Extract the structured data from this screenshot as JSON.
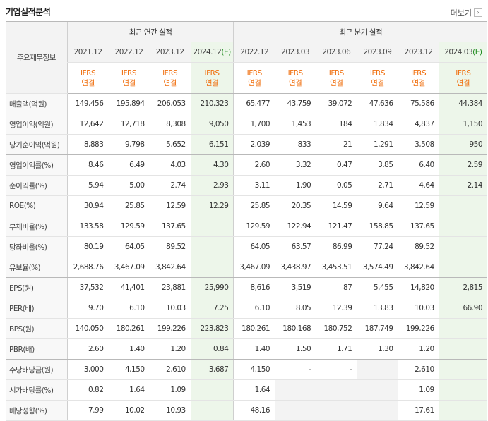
{
  "section_title": "기업실적분석",
  "more_label": "더보기",
  "more_icon": "chevron-right-icon",
  "header": {
    "row_label": "주요재무정보",
    "annual_group": "최근 연간 실적",
    "quarter_group": "최근 분기 실적",
    "annual_years": [
      "2021.12",
      "2022.12",
      "2023.12",
      "2024.12"
    ],
    "annual_estimate_mark": "(E)",
    "quarter_periods": [
      "2022.12",
      "2023.03",
      "2023.06",
      "2023.09",
      "2023.12",
      "2024.03"
    ],
    "quarter_estimate_mark": "(E)",
    "ifrs_top": "IFRS",
    "ifrs_bottom": "연결"
  },
  "rows": [
    {
      "label": "매출액(억원)",
      "annual": [
        "149,456",
        "195,894",
        "206,053",
        "210,323"
      ],
      "quarter": [
        "65,477",
        "43,759",
        "39,072",
        "47,636",
        "75,586",
        "44,384"
      ]
    },
    {
      "label": "영업이익(억원)",
      "annual": [
        "12,642",
        "12,718",
        "8,308",
        "9,050"
      ],
      "quarter": [
        "1,700",
        "1,453",
        "184",
        "1,834",
        "4,837",
        "1,150"
      ]
    },
    {
      "label": "당기순이익(억원)",
      "annual": [
        "8,883",
        "9,798",
        "5,652",
        "6,151"
      ],
      "quarter": [
        "2,039",
        "833",
        "21",
        "1,291",
        "3,508",
        "950"
      ]
    },
    {
      "label": "영업이익률(%)",
      "annual": [
        "8.46",
        "6.49",
        "4.03",
        "4.30"
      ],
      "quarter": [
        "2.60",
        "3.32",
        "0.47",
        "3.85",
        "6.40",
        "2.59"
      ]
    },
    {
      "label": "순이익률(%)",
      "annual": [
        "5.94",
        "5.00",
        "2.74",
        "2.93"
      ],
      "quarter": [
        "3.11",
        "1.90",
        "0.05",
        "2.71",
        "4.64",
        "2.14"
      ]
    },
    {
      "label": "ROE(%)",
      "annual": [
        "30.94",
        "25.85",
        "12.59",
        "12.29"
      ],
      "quarter": [
        "25.85",
        "20.35",
        "14.59",
        "9.64",
        "12.59",
        ""
      ]
    },
    {
      "label": "부채비율(%)",
      "annual": [
        "133.58",
        "129.59",
        "137.65",
        ""
      ],
      "quarter": [
        "129.59",
        "122.94",
        "121.47",
        "158.85",
        "137.65",
        ""
      ]
    },
    {
      "label": "당좌비율(%)",
      "annual": [
        "80.19",
        "64.05",
        "89.52",
        ""
      ],
      "quarter": [
        "64.05",
        "63.57",
        "86.99",
        "77.24",
        "89.52",
        ""
      ]
    },
    {
      "label": "유보율(%)",
      "annual": [
        "2,688.76",
        "3,467.09",
        "3,842.64",
        ""
      ],
      "quarter": [
        "3,467.09",
        "3,438.97",
        "3,453.51",
        "3,574.49",
        "3,842.64",
        ""
      ]
    },
    {
      "label": "EPS(원)",
      "annual": [
        "37,532",
        "41,401",
        "23,881",
        "25,990"
      ],
      "quarter": [
        "8,616",
        "3,519",
        "87",
        "5,455",
        "14,820",
        "2,815"
      ]
    },
    {
      "label": "PER(배)",
      "annual": [
        "9.70",
        "6.10",
        "10.03",
        "7.25"
      ],
      "quarter": [
        "6.10",
        "8.05",
        "12.39",
        "13.83",
        "10.03",
        "66.90"
      ]
    },
    {
      "label": "BPS(원)",
      "annual": [
        "140,050",
        "180,261",
        "199,226",
        "223,823"
      ],
      "quarter": [
        "180,261",
        "180,168",
        "180,752",
        "187,749",
        "199,226",
        ""
      ]
    },
    {
      "label": "PBR(배)",
      "annual": [
        "2.60",
        "1.40",
        "1.20",
        "0.84"
      ],
      "quarter": [
        "1.40",
        "1.50",
        "1.71",
        "1.30",
        "1.20",
        ""
      ]
    },
    {
      "label": "주당배당금(원)",
      "annual": [
        "3,000",
        "4,150",
        "2,610",
        "3,687"
      ],
      "quarter": [
        "4,150",
        "-",
        "-",
        "",
        "2,610",
        ""
      ]
    },
    {
      "label": "시가배당률(%)",
      "annual": [
        "0.82",
        "1.64",
        "1.09",
        ""
      ],
      "quarter": [
        "1.64",
        "",
        "",
        "",
        "1.09",
        ""
      ]
    },
    {
      "label": "배당성향(%)",
      "annual": [
        "7.99",
        "10.02",
        "10.93",
        ""
      ],
      "quarter": [
        "48.16",
        "",
        "",
        "",
        "17.61",
        ""
      ]
    }
  ],
  "colors": {
    "ifrs": "#f07010",
    "estimate_bg": "#edf6ea",
    "estimate_mark": "#1a8a1a"
  }
}
